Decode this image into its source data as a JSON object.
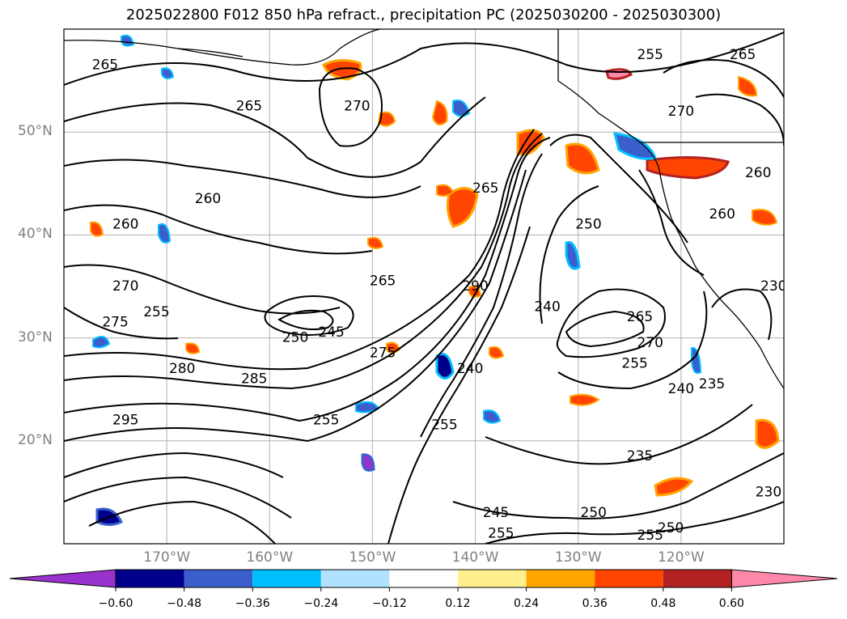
{
  "title": "2025022800 F012 850 hPa refract., precipitation PC (2025030200 - 2025030300)",
  "map": {
    "lon_range": [
      -180,
      -110
    ],
    "lat_range": [
      10,
      60
    ],
    "lat_ticks": [
      "50°N",
      "40°N",
      "30°N",
      "20°N"
    ],
    "lat_values": [
      50,
      40,
      30,
      20
    ],
    "lon_ticks": [
      "170°W",
      "160°W",
      "150°W",
      "140°W",
      "130°W",
      "120°W"
    ],
    "lon_values": [
      -170,
      -160,
      -150,
      -140,
      -130,
      -120
    ],
    "contour_labels": [
      {
        "text": "265",
        "lon": -176,
        "lat": 56.5
      },
      {
        "text": "265",
        "lon": -162,
        "lat": 52.5
      },
      {
        "text": "270",
        "lon": -151.5,
        "lat": 52.5
      },
      {
        "text": "260",
        "lon": -166,
        "lat": 43.5
      },
      {
        "text": "260",
        "lon": -174,
        "lat": 41
      },
      {
        "text": "265",
        "lon": -139,
        "lat": 44.5
      },
      {
        "text": "270",
        "lon": -174,
        "lat": 35
      },
      {
        "text": "275",
        "lon": -175,
        "lat": 31.5
      },
      {
        "text": "255",
        "lon": -171,
        "lat": 32.5
      },
      {
        "text": "250",
        "lon": -157.5,
        "lat": 30
      },
      {
        "text": "245",
        "lon": -154,
        "lat": 30.5
      },
      {
        "text": "265",
        "lon": -149,
        "lat": 35.5
      },
      {
        "text": "275",
        "lon": -149,
        "lat": 28.5
      },
      {
        "text": "280",
        "lon": -168.5,
        "lat": 27
      },
      {
        "text": "285",
        "lon": -161.5,
        "lat": 26
      },
      {
        "text": "290",
        "lon": -140,
        "lat": 35
      },
      {
        "text": "240",
        "lon": -140.5,
        "lat": 27
      },
      {
        "text": "255",
        "lon": -143,
        "lat": 21.5
      },
      {
        "text": "255",
        "lon": -154.5,
        "lat": 22
      },
      {
        "text": "295",
        "lon": -174,
        "lat": 22
      },
      {
        "text": "250",
        "lon": -129,
        "lat": 41
      },
      {
        "text": "265",
        "lon": -124,
        "lat": 32
      },
      {
        "text": "270",
        "lon": -123,
        "lat": 29.5
      },
      {
        "text": "255",
        "lon": -124.5,
        "lat": 27.5
      },
      {
        "text": "240",
        "lon": -133,
        "lat": 33
      },
      {
        "text": "240",
        "lon": -120,
        "lat": 25
      },
      {
        "text": "235",
        "lon": -117,
        "lat": 25.5
      },
      {
        "text": "235",
        "lon": -124,
        "lat": 18.5
      },
      {
        "text": "230",
        "lon": -111.5,
        "lat": 15
      },
      {
        "text": "245",
        "lon": -138,
        "lat": 13
      },
      {
        "text": "250",
        "lon": -128.5,
        "lat": 13
      },
      {
        "text": "255",
        "lon": -137.5,
        "lat": 11
      },
      {
        "text": "255",
        "lon": -123,
        "lat": 10.8
      },
      {
        "text": "250",
        "lon": -121,
        "lat": 11.5
      },
      {
        "text": "270",
        "lon": -120,
        "lat": 52
      },
      {
        "text": "260",
        "lon": -116,
        "lat": 42
      },
      {
        "text": "260",
        "lon": -112.5,
        "lat": 46
      },
      {
        "text": "255",
        "lon": -123,
        "lat": 57.5
      },
      {
        "text": "265",
        "lon": -114,
        "lat": 57.5
      },
      {
        "text": "230",
        "lon": -111,
        "lat": 35
      }
    ],
    "land_outline_color": "#000000",
    "grid_color": "#b0b0b0"
  },
  "colorbar": {
    "ticks": [
      "−0.60",
      "−0.48",
      "−0.36",
      "−0.24",
      "−0.12",
      "0.12",
      "0.24",
      "0.36",
      "0.48",
      "0.60"
    ],
    "colors": [
      "#9932cc",
      "#00008b",
      "#3a5fcd",
      "#00bfff",
      "#b0e2ff",
      "#ffffff",
      "#fff08f",
      "#ffa500",
      "#ff4500",
      "#b22222",
      "#ff88aa"
    ],
    "extend": "both"
  }
}
